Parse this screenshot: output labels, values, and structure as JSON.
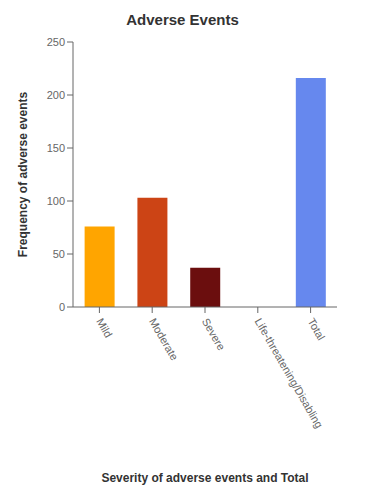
{
  "chart_data": {
    "type": "bar",
    "title": "Adverse Events",
    "categories": [
      "Mild",
      "Moderate",
      "Severe",
      "Life-threatening/Disabling",
      "Total"
    ],
    "values": [
      76,
      103,
      37,
      0,
      216
    ],
    "colors": [
      "#FFA500",
      "#CC4415",
      "#6B0E0E",
      "#CC4415",
      "#6688EE"
    ],
    "xlabel": "Severity of adverse events and Total",
    "ylabel": "Frequency of adverse events",
    "ylim": [
      0,
      250
    ],
    "yticks": [
      0,
      50,
      100,
      150,
      200,
      250
    ],
    "grid": false
  }
}
